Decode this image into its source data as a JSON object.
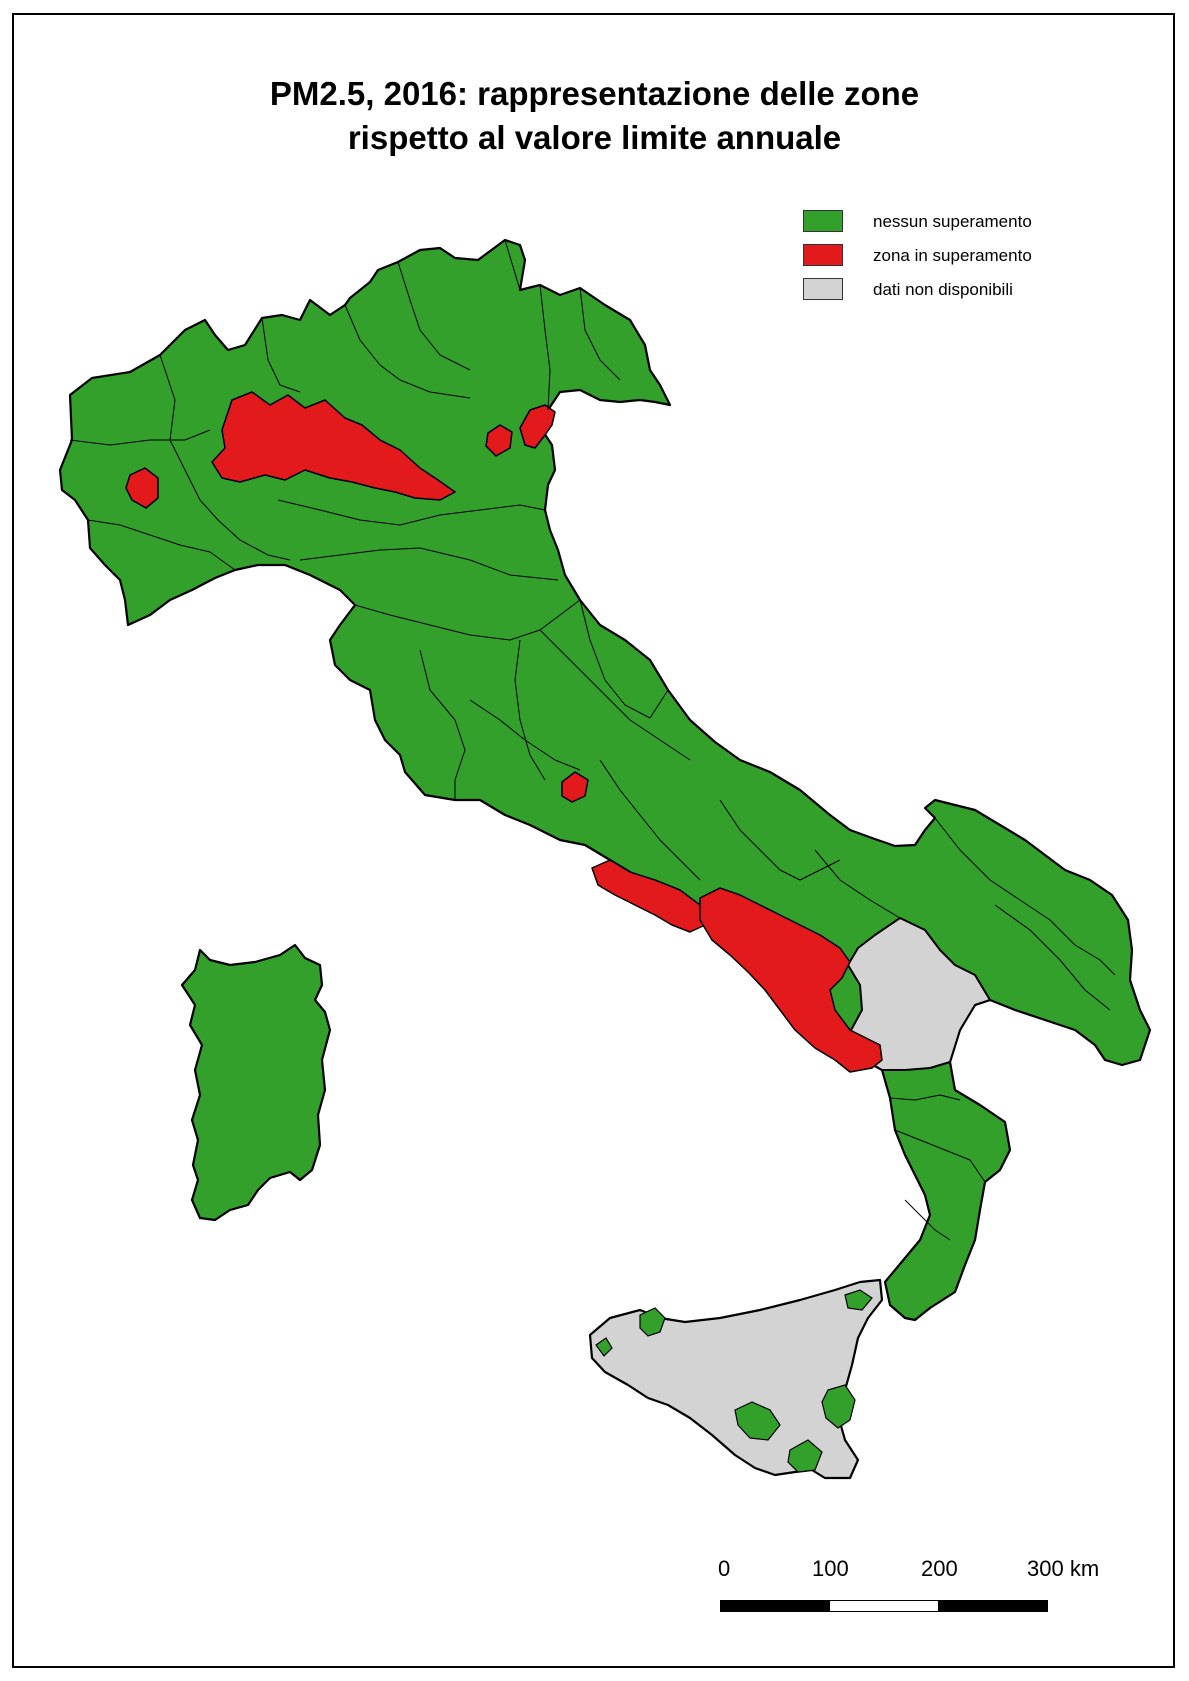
{
  "title": {
    "line1": "PM2.5, 2016: rappresentazione delle zone",
    "line2": "rispetto al valore limite annuale"
  },
  "legend": [
    {
      "label": "nessun superamento",
      "color": "#33a02c"
    },
    {
      "label": "zona in superamento",
      "color": "#e31a1c"
    },
    {
      "label": "dati non disponibili",
      "color": "#d3d3d3"
    }
  ],
  "scalebar": {
    "ticks": [
      "0",
      "100",
      "200",
      "300 km"
    ],
    "segment_colors": [
      "#000000",
      "#ffffff",
      "#000000"
    ]
  },
  "colors": {
    "no_exceedance": "#33a02c",
    "exceedance": "#e31a1c",
    "no_data": "#d3d3d3",
    "border": "#000000"
  }
}
